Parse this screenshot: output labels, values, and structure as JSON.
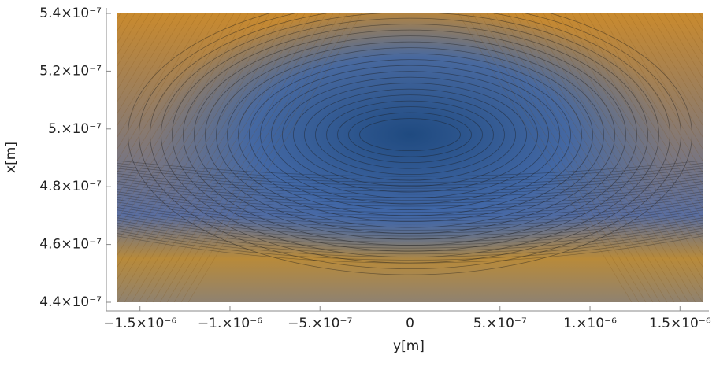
{
  "chart_data": {
    "type": "contour",
    "x_label": "y[m]",
    "y_label": "x[m]",
    "xlim": [
      -1.63e-06,
      1.63e-06
    ],
    "ylim": [
      4.4e-07,
      5.4e-07
    ],
    "xticks": [
      {
        "value": -1.5e-06,
        "label": "−1.5×10⁻⁶"
      },
      {
        "value": -1e-06,
        "label": "−1.×10⁻⁶"
      },
      {
        "value": -5e-07,
        "label": "−5.×10⁻⁷"
      },
      0,
      {
        "value": 5e-07,
        "label": "5.×10⁻⁷"
      },
      {
        "value": 1e-06,
        "label": "1.×10⁻⁶"
      },
      {
        "value": 1.5e-06,
        "label": "1.5×10⁻⁶"
      }
    ],
    "yticks": [
      {
        "value": 4.4e-07,
        "label": "4.4×10⁻⁷"
      },
      {
        "value": 4.6e-07,
        "label": "4.6×10⁻⁷"
      },
      {
        "value": 4.8e-07,
        "label": "4.8×10⁻⁷"
      },
      {
        "value": 5e-07,
        "label": "5.×10⁻⁷"
      },
      {
        "value": 5.2e-07,
        "label": "5.2×10⁻⁷"
      },
      {
        "value": 5.4e-07,
        "label": "5.4×10⁻⁷"
      }
    ]
  }
}
